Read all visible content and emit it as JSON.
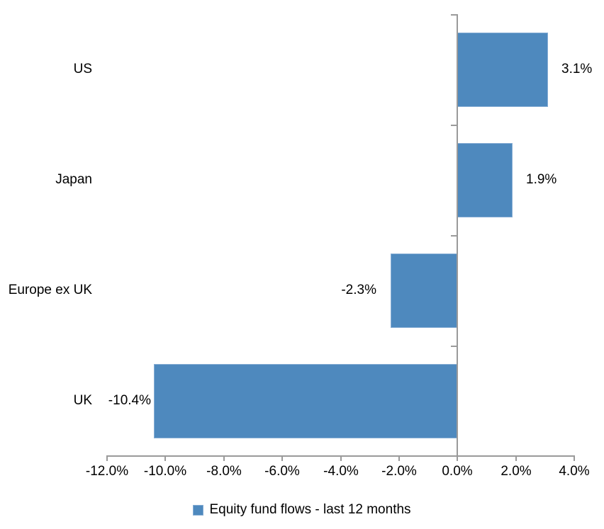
{
  "chart_data": {
    "type": "bar",
    "orientation": "horizontal",
    "title": "",
    "categories": [
      "US",
      "Japan",
      "Europe ex UK",
      "UK"
    ],
    "series": [
      {
        "name": "Equity fund flows - last 12 months",
        "values": [
          3.1,
          1.9,
          -2.3,
          -10.4
        ]
      }
    ],
    "data_labels": [
      "3.1%",
      "1.9%",
      "-2.3%",
      "-10.4%"
    ],
    "x_ticks": [
      {
        "label": "-12.0%",
        "value": -12
      },
      {
        "label": "-10.0%",
        "value": -10
      },
      {
        "label": "-8.0%",
        "value": -8
      },
      {
        "label": "-6.0%",
        "value": -6
      },
      {
        "label": "-4.0%",
        "value": -4
      },
      {
        "label": "-2.0%",
        "value": -2
      },
      {
        "label": "0.0%",
        "value": 0
      },
      {
        "label": "2.0%",
        "value": 2
      },
      {
        "label": "4.0%",
        "value": 4
      }
    ],
    "xlim": [
      -12,
      4
    ],
    "grid": false,
    "legend_position": "bottom",
    "legend": [
      {
        "label": "Equity fund flows - last 12 months",
        "color": "#4e89be"
      }
    ],
    "colors": {
      "bar": "#4e89be",
      "bar_border": "#86add4",
      "axis": "#9a9a9a",
      "text": "#000000",
      "background": "#ffffff"
    }
  }
}
